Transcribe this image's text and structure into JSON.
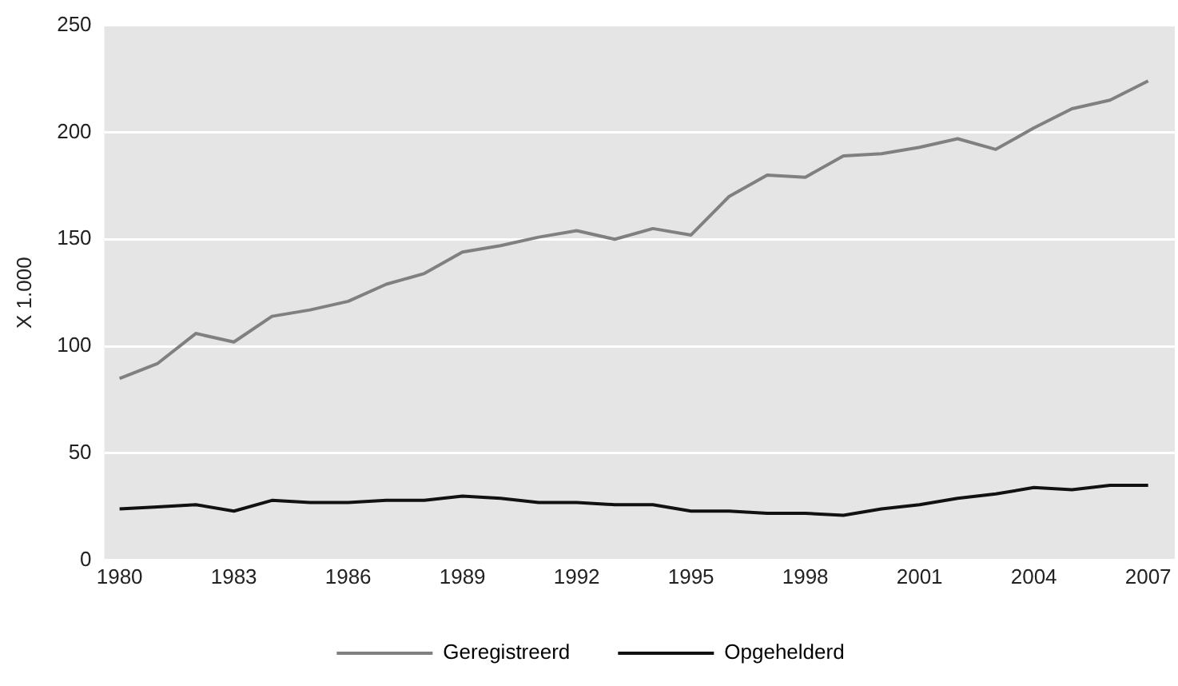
{
  "chart_data": {
    "type": "line",
    "ylabel": "X 1.000",
    "x": [
      1980,
      1981,
      1982,
      1983,
      1984,
      1985,
      1986,
      1987,
      1988,
      1989,
      1990,
      1991,
      1992,
      1993,
      1994,
      1995,
      1996,
      1997,
      1998,
      1999,
      2000,
      2001,
      2002,
      2003,
      2004,
      2005,
      2006,
      2007
    ],
    "xlim": [
      1979.6,
      2007.7
    ],
    "xticks": [
      1980,
      1983,
      1986,
      1989,
      1992,
      1995,
      1998,
      2001,
      2004,
      2007
    ],
    "ylim": [
      0,
      250
    ],
    "yticks": [
      0,
      50,
      100,
      150,
      200,
      250
    ],
    "grid": "y",
    "legend": "bottom",
    "marker": "none",
    "line_style": "solid",
    "series": [
      {
        "name": "Geregistreerd",
        "color": "#808080",
        "values": [
          85,
          92,
          106,
          102,
          114,
          117,
          121,
          129,
          134,
          144,
          147,
          151,
          154,
          150,
          155,
          152,
          170,
          180,
          179,
          189,
          190,
          193,
          197,
          192,
          202,
          211,
          215,
          224
        ]
      },
      {
        "name": "Opgehelderd",
        "color": "#111111",
        "values": [
          24,
          25,
          26,
          23,
          28,
          27,
          27,
          28,
          28,
          30,
          29,
          27,
          27,
          26,
          26,
          23,
          23,
          22,
          22,
          21,
          24,
          26,
          29,
          31,
          34,
          33,
          35,
          35
        ]
      }
    ]
  }
}
